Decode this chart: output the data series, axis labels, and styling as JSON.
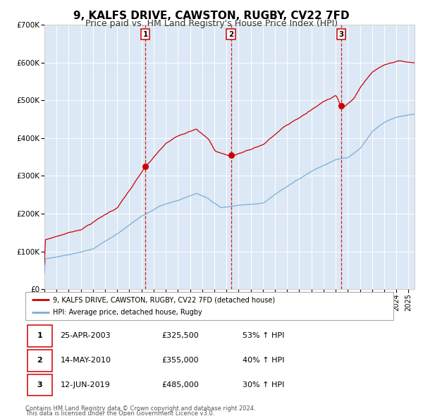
{
  "title": "9, KALFS DRIVE, CAWSTON, RUGBY, CV22 7FD",
  "subtitle": "Price paid vs. HM Land Registry's House Price Index (HPI)",
  "title_fontsize": 11,
  "subtitle_fontsize": 9,
  "background_color": "#ffffff",
  "plot_bg_color": "#dce8f5",
  "grid_color": "#ffffff",
  "ylim": [
    0,
    700000
  ],
  "yticks": [
    0,
    100000,
    200000,
    300000,
    400000,
    500000,
    600000,
    700000
  ],
  "ytick_labels": [
    "£0",
    "£100K",
    "£200K",
    "£300K",
    "£400K",
    "£500K",
    "£600K",
    "£700K"
  ],
  "xmin": 1995.0,
  "xmax": 2025.5,
  "red_line_color": "#cc0000",
  "blue_line_color": "#7aaed6",
  "sale_marker_color": "#cc0000",
  "vline_color": "#cc0000",
  "sales": [
    {
      "num": 1,
      "date_x": 2003.32,
      "price": 325500,
      "label": "1"
    },
    {
      "num": 2,
      "date_x": 2010.37,
      "price": 355000,
      "label": "2"
    },
    {
      "num": 3,
      "date_x": 2019.45,
      "price": 485000,
      "label": "3"
    }
  ],
  "table_rows": [
    {
      "num": "1",
      "date": "25-APR-2003",
      "price": "£325,500",
      "pct": "53% ↑ HPI"
    },
    {
      "num": "2",
      "date": "14-MAY-2010",
      "price": "£355,000",
      "pct": "40% ↑ HPI"
    },
    {
      "num": "3",
      "date": "12-JUN-2019",
      "price": "£485,000",
      "pct": "30% ↑ HPI"
    }
  ],
  "legend_line1": "9, KALFS DRIVE, CAWSTON, RUGBY, CV22 7FD (detached house)",
  "legend_line2": "HPI: Average price, detached house, Rugby",
  "footer1": "Contains HM Land Registry data © Crown copyright and database right 2024.",
  "footer2": "This data is licensed under the Open Government Licence v3.0."
}
